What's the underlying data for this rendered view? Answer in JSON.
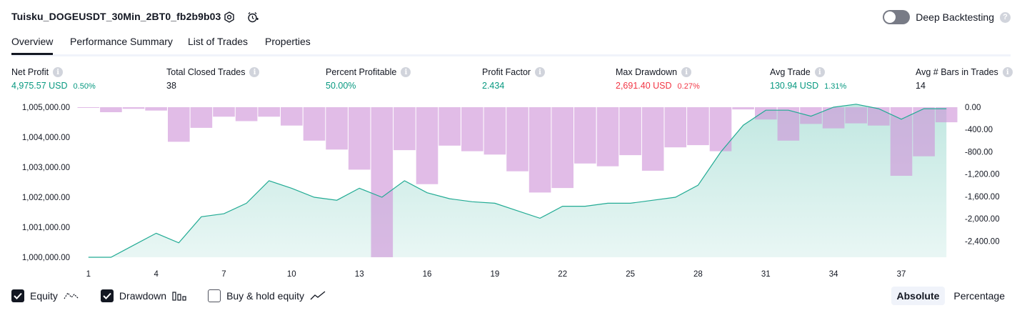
{
  "header": {
    "strategy_name": "Tuisku_DOGEUSDT_30Min_2BT0_fb2b9b03",
    "settings_icon": "settings-gear-icon",
    "alert_icon": "add-alert-clock-icon",
    "deep_backtesting_label": "Deep Backtesting",
    "deep_backtesting_enabled": false,
    "help_mark": "?"
  },
  "tabs": [
    {
      "label": "Overview",
      "active": true
    },
    {
      "label": "Performance Summary",
      "active": false
    },
    {
      "label": "List of Trades",
      "active": false
    },
    {
      "label": "Properties",
      "active": false
    }
  ],
  "metrics": [
    {
      "label": "Net Profit",
      "value": "4,975.57 USD",
      "pct": "0.50%",
      "tone": "green"
    },
    {
      "label": "Total Closed Trades",
      "value": "38",
      "pct": "",
      "tone": "dark"
    },
    {
      "label": "Percent Profitable",
      "value": "50.00%",
      "pct": "",
      "tone": "green"
    },
    {
      "label": "Profit Factor",
      "value": "2.434",
      "pct": "",
      "tone": "green"
    },
    {
      "label": "Max Drawdown",
      "value": "2,691.40 USD",
      "pct": "0.27%",
      "tone": "red"
    },
    {
      "label": "Avg Trade",
      "value": "130.94 USD",
      "pct": "1.31%",
      "tone": "green"
    },
    {
      "label": "Avg # Bars in Trades",
      "value": "14",
      "pct": "",
      "tone": "dark"
    }
  ],
  "info_mark": "i",
  "chart_data": {
    "type": "area",
    "x_tick_labels": [
      "1",
      "4",
      "7",
      "10",
      "13",
      "16",
      "19",
      "22",
      "25",
      "28",
      "31",
      "34",
      "37"
    ],
    "left_axis": {
      "tick_labels": [
        "1,005,000.00",
        "1,004,000.00",
        "1,003,000.00",
        "1,002,000.00",
        "1,001,000.00",
        "1,000,000.00"
      ],
      "ylim": [
        1000000,
        1005000
      ]
    },
    "right_axis": {
      "tick_labels": [
        "0.00",
        "-400.00",
        "-800.00",
        "-1,200.00",
        "-1,600.00",
        "-2,000.00",
        "-2,400.00"
      ],
      "ylim": [
        -2691.4,
        0
      ]
    },
    "series": [
      {
        "name": "Equity",
        "color": "#22ab94",
        "x": [
          1,
          2,
          3,
          4,
          5,
          6,
          7,
          8,
          9,
          10,
          11,
          12,
          13,
          14,
          15,
          16,
          17,
          18,
          19,
          20,
          21,
          22,
          23,
          24,
          25,
          26,
          27,
          28,
          29,
          30,
          31,
          32,
          33,
          34,
          35,
          36,
          37,
          38,
          39
        ],
        "values": [
          1000000,
          1000000,
          1000400,
          1000800,
          1000480,
          1001350,
          1001450,
          1001800,
          1002550,
          1002300,
          1002000,
          1001900,
          1002300,
          1002000,
          1002550,
          1002150,
          1001950,
          1001850,
          1001800,
          1001550,
          1001300,
          1001700,
          1001700,
          1001800,
          1001800,
          1001900,
          1002000,
          1002400,
          1003500,
          1004400,
          1004900,
          1004900,
          1004700,
          1005000,
          1005100,
          1004950,
          1004600,
          1004950,
          1004950
        ]
      },
      {
        "name": "Drawdown",
        "color": "#ce93d8",
        "x": [
          1,
          2,
          3,
          4,
          5,
          6,
          7,
          8,
          9,
          10,
          11,
          12,
          13,
          14,
          15,
          16,
          17,
          18,
          19,
          20,
          21,
          22,
          23,
          24,
          25,
          26,
          27,
          28,
          29,
          30,
          31,
          32,
          33,
          34,
          35,
          36,
          37,
          38,
          39
        ],
        "values": [
          -10,
          -90,
          -30,
          -60,
          -620,
          -370,
          -170,
          -250,
          -170,
          -330,
          -600,
          -760,
          -1120,
          -2690,
          -770,
          -1380,
          -690,
          -790,
          -850,
          -1150,
          -1530,
          -1450,
          -1010,
          -1060,
          -860,
          -1140,
          -720,
          -680,
          -790,
          -40,
          -220,
          -600,
          -300,
          -380,
          -290,
          -330,
          -1230,
          -880,
          -270
        ]
      }
    ],
    "legend": [
      {
        "label": "Equity",
        "checked": true
      },
      {
        "label": "Drawdown",
        "checked": true
      },
      {
        "label": "Buy & hold equity",
        "checked": false
      }
    ],
    "grid": false
  },
  "view_toggle": {
    "absolute": "Absolute",
    "percentage": "Percentage",
    "selected": "absolute"
  }
}
